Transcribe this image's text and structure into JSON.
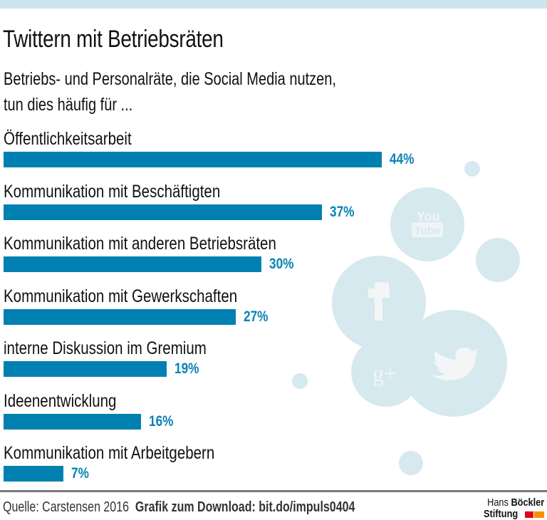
{
  "header": {
    "title": "Twittern mit Betriebsräten",
    "subtitle_line1": "Betriebs- und Personalräte, die Social Media nutzen,",
    "subtitle_line2": "tun dies häufig für ..."
  },
  "chart_data": {
    "type": "bar",
    "orientation": "horizontal",
    "title": "Twittern mit Betriebsräten",
    "subtitle": "Betriebs- und Personalräte, die Social Media nutzen, tun dies häufig für ...",
    "xlabel": "",
    "ylabel": "",
    "unit": "%",
    "xlim": [
      0,
      44
    ],
    "grid": false,
    "categories": [
      "Öffentlichkeitsarbeit",
      "Kommunikation mit Beschäftigten",
      "Kommunikation mit anderen Betriebsräten",
      "Kommunikation mit Gewerkschaften",
      "interne Diskussion im Gremium",
      "Ideenentwicklung",
      "Kommunikation mit Arbeitgebern"
    ],
    "values": [
      44,
      37,
      30,
      27,
      19,
      16,
      7
    ],
    "value_labels": [
      "44%",
      "37%",
      "30%",
      "27%",
      "19%",
      "16%",
      "7%"
    ],
    "bar_color": "#0080b0",
    "label_color": "#0a82b4"
  },
  "decoration": {
    "bubble_color": "#d5e9ef",
    "icons": [
      "youtube-icon",
      "facebook-icon",
      "google-plus-icon",
      "twitter-icon"
    ],
    "youtube_text_top": "You",
    "youtube_text_bottom": "Tube",
    "gplus_text": "g+"
  },
  "footer": {
    "source": "Quelle: Carstensen 2016",
    "download": "Grafik zum Download: bit.do/impuls0404",
    "logo_line1_light": "Hans",
    "logo_line1_bold": "Böckler",
    "logo_line2": "Stiftung",
    "logo_colors": [
      "#e2001a",
      "#f39200"
    ]
  }
}
